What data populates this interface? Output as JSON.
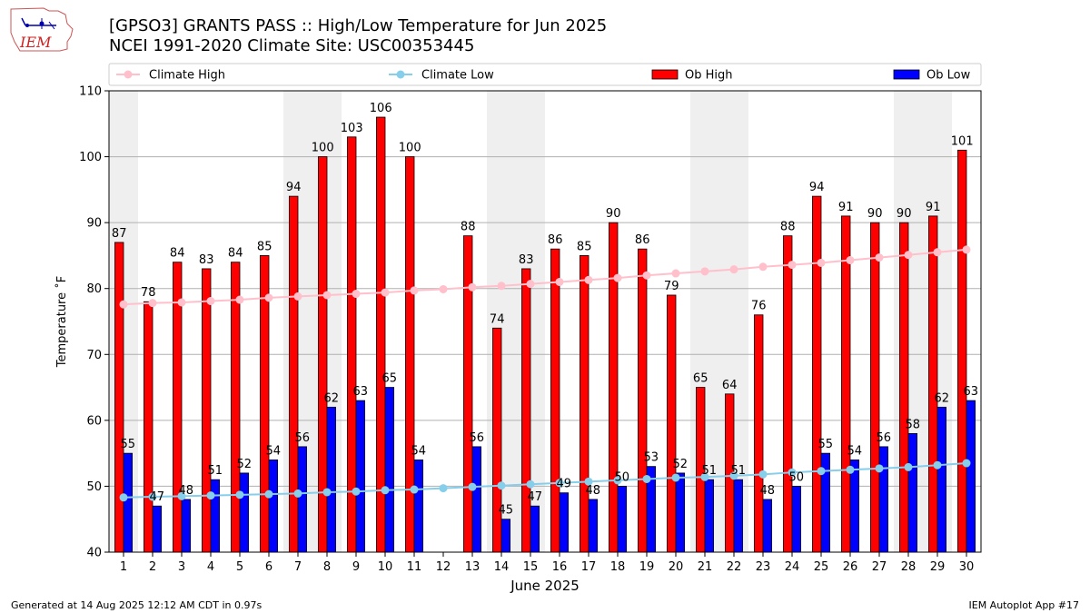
{
  "logo": {
    "text": "IEM"
  },
  "title_line1": "[GPSO3] GRANTS PASS :: High/Low Temperature for Jun 2025",
  "title_line2": "NCEI 1991-2020 Climate Site: USC00353445",
  "footer_left": "Generated at 14 Aug 2025 12:12 AM CDT in 0.97s",
  "footer_right": "IEM Autoplot App #17",
  "colors": {
    "ob_high": "#ff0000",
    "ob_low": "#0000ff",
    "climate_high": "#ffc0cb",
    "climate_low": "#87ceeb",
    "weekend_band": "#efefef",
    "grid": "#b0b0b0"
  },
  "chart_data": {
    "type": "bar",
    "xlabel": "June 2025",
    "ylabel": "Temperature ˚F",
    "xlim": [
      0.5,
      30.5
    ],
    "ylim": [
      40,
      110
    ],
    "yticks": [
      40,
      50,
      60,
      70,
      80,
      90,
      100,
      110
    ],
    "grid": "horizontal",
    "legend_position": "top",
    "weekend_days": [
      1,
      7,
      8,
      14,
      15,
      21,
      22,
      28,
      29
    ],
    "days": [
      1,
      2,
      3,
      4,
      5,
      6,
      7,
      8,
      9,
      10,
      11,
      12,
      13,
      14,
      15,
      16,
      17,
      18,
      19,
      20,
      21,
      22,
      23,
      24,
      25,
      26,
      27,
      28,
      29,
      30
    ],
    "series": [
      {
        "name": "Climate High",
        "kind": "line",
        "values": [
          77.6,
          77.8,
          77.9,
          78.1,
          78.3,
          78.6,
          78.8,
          79.0,
          79.2,
          79.4,
          79.7,
          79.9,
          80.2,
          80.4,
          80.7,
          81.0,
          81.3,
          81.6,
          82.0,
          82.3,
          82.6,
          82.9,
          83.3,
          83.6,
          83.9,
          84.3,
          84.7,
          85.1,
          85.5,
          85.9
        ]
      },
      {
        "name": "Climate Low",
        "kind": "line",
        "values": [
          48.3,
          48.4,
          48.5,
          48.6,
          48.7,
          48.8,
          48.9,
          49.1,
          49.2,
          49.4,
          49.5,
          49.7,
          49.9,
          50.1,
          50.3,
          50.5,
          50.7,
          50.9,
          51.1,
          51.3,
          51.4,
          51.6,
          51.8,
          52.1,
          52.3,
          52.5,
          52.7,
          52.9,
          53.2,
          53.5
        ]
      },
      {
        "name": "Ob High",
        "kind": "bar",
        "values": [
          87,
          78,
          84,
          83,
          84,
          85,
          94,
          100,
          103,
          106,
          100,
          null,
          88,
          74,
          83,
          86,
          85,
          90,
          86,
          79,
          65,
          64,
          76,
          88,
          94,
          91,
          90,
          90,
          91,
          101
        ]
      },
      {
        "name": "Ob Low",
        "kind": "bar",
        "values": [
          55,
          47,
          48,
          51,
          52,
          54,
          56,
          62,
          63,
          65,
          54,
          null,
          56,
          45,
          47,
          49,
          48,
          50,
          53,
          52,
          51,
          51,
          48,
          50,
          55,
          54,
          56,
          58,
          62,
          63
        ]
      }
    ]
  }
}
